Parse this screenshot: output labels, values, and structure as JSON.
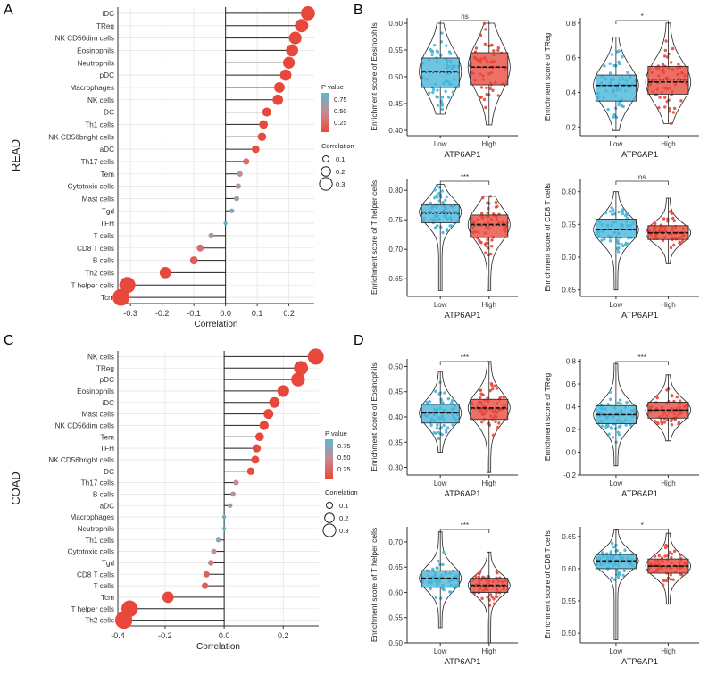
{
  "chart_data": [
    {
      "type": "lollipop",
      "panel": "A",
      "ylabel": "READ",
      "xlabel": "Correlation",
      "xlim": [
        -0.34,
        0.28
      ],
      "xticks": [
        -0.3,
        -0.2,
        -0.1,
        0.0,
        0.1,
        0.2
      ],
      "xtick_labels": [
        "-0.3",
        "-0.2",
        "-0.1",
        "0.0",
        "0.1",
        "0.2"
      ],
      "categories": [
        "iDC",
        "TReg",
        "NK CD56dim cells",
        "Eosinophils",
        "Neutrophils",
        "pDC",
        "Macrophages",
        "NK cells",
        "DC",
        "Th1 cells",
        "NK CD56bright cells",
        "aDC",
        "Th17 cells",
        "Tem",
        "Cytotoxic cells",
        "Mast cells",
        "Tgd",
        "TFH",
        "T cells",
        "CD8 T cells",
        "B cells",
        "Th2 cells",
        "T helper cells",
        "Tcm"
      ],
      "correlation": [
        0.26,
        0.24,
        0.22,
        0.21,
        0.2,
        0.19,
        0.17,
        0.165,
        0.13,
        0.12,
        0.115,
        0.095,
        0.065,
        0.045,
        0.04,
        0.035,
        0.02,
        0.0,
        -0.045,
        -0.08,
        -0.1,
        -0.19,
        -0.31,
        -0.33
      ],
      "p_value": [
        0.0,
        0.0,
        0.0,
        0.0,
        0.0,
        0.0,
        0.0,
        0.0,
        0.0,
        0.01,
        0.02,
        0.05,
        0.3,
        0.55,
        0.6,
        0.65,
        0.8,
        0.99,
        0.6,
        0.3,
        0.15,
        0.0,
        0.0,
        0.0
      ],
      "legend": {
        "p_title": "P value",
        "p_ticks": [
          "0.75",
          "0.50",
          "0.25"
        ],
        "size_title": "Correlation",
        "size_ticks": [
          "0.1",
          "0.2",
          "0.3"
        ]
      }
    },
    {
      "type": "lollipop",
      "panel": "C",
      "ylabel": "COAD",
      "xlabel": "Correlation",
      "xlim": [
        -0.36,
        0.32
      ],
      "xticks": [
        -0.4,
        -0.2,
        0.0,
        0.2
      ],
      "xtick_labels": [
        "-0.4",
        "-0.2",
        "0.0",
        "0.2"
      ],
      "categories": [
        "NK cells",
        "TReg",
        "pDC",
        "Eosinophils",
        "iDC",
        "Mast cells",
        "NK CD56dim cells",
        "Tem",
        "TFH",
        "NK CD56bright cells",
        "DC",
        "Th17 cells",
        "B cells",
        "aDC",
        "Macrophages",
        "Neutrophils",
        "Th1 cells",
        "Cytotoxic cells",
        "Tgd",
        "CD8 T cells",
        "T cells",
        "Tcm",
        "T helper cells",
        "Th2 cells"
      ],
      "correlation": [
        0.31,
        0.26,
        0.25,
        0.2,
        0.17,
        0.15,
        0.135,
        0.12,
        0.11,
        0.105,
        0.09,
        0.04,
        0.03,
        0.02,
        0.0,
        0.0,
        -0.02,
        -0.035,
        -0.045,
        -0.06,
        -0.065,
        -0.19,
        -0.32,
        -0.34
      ],
      "p_value": [
        0.0,
        0.0,
        0.0,
        0.0,
        0.0,
        0.0,
        0.0,
        0.0,
        0.01,
        0.01,
        0.02,
        0.5,
        0.6,
        0.7,
        0.99,
        0.99,
        0.75,
        0.55,
        0.4,
        0.2,
        0.15,
        0.0,
        0.0,
        0.0
      ],
      "legend": {
        "p_title": "P value",
        "p_ticks": [
          "0.75",
          "0.50",
          "0.25"
        ],
        "size_title": "Correlation",
        "size_ticks": [
          "0.1",
          "0.2",
          "0.3"
        ]
      }
    },
    {
      "type": "violin_box",
      "panel": "B1",
      "ylabel": "Enrichment score of Eosinophils",
      "xlabel": "ATP6AP1",
      "categories": [
        "Low",
        "High"
      ],
      "ylim": [
        0.39,
        0.61
      ],
      "yticks": [
        0.4,
        0.45,
        0.5,
        0.55,
        0.6
      ],
      "ytick_labels": [
        "0.40",
        "0.45",
        "0.50",
        "0.55",
        "0.60"
      ],
      "significance": "ns",
      "groups": [
        {
          "name": "Low",
          "min": 0.43,
          "q1": 0.48,
          "median": 0.51,
          "mean": 0.508,
          "q3": 0.535,
          "max": 0.6
        },
        {
          "name": "High",
          "min": 0.41,
          "q1": 0.485,
          "median": 0.518,
          "mean": 0.517,
          "q3": 0.545,
          "max": 0.6
        }
      ]
    },
    {
      "type": "violin_box",
      "panel": "B2",
      "ylabel": "Enrichment score of TReg",
      "xlabel": "ATP6AP1",
      "categories": [
        "Low",
        "High"
      ],
      "ylim": [
        0.15,
        0.83
      ],
      "yticks": [
        0.2,
        0.4,
        0.6,
        0.8
      ],
      "ytick_labels": [
        "0.2",
        "0.4",
        "0.6",
        "0.8"
      ],
      "significance": "*",
      "groups": [
        {
          "name": "Low",
          "min": 0.18,
          "q1": 0.35,
          "median": 0.44,
          "mean": 0.44,
          "q3": 0.5,
          "max": 0.72
        },
        {
          "name": "High",
          "min": 0.22,
          "q1": 0.39,
          "median": 0.46,
          "mean": 0.47,
          "q3": 0.55,
          "max": 0.8
        }
      ]
    },
    {
      "type": "violin_box",
      "panel": "B3",
      "ylabel": "Enrichment score of T helper cells",
      "xlabel": "ATP6AP1",
      "categories": [
        "Low",
        "High"
      ],
      "ylim": [
        0.62,
        0.82
      ],
      "yticks": [
        0.65,
        0.7,
        0.75,
        0.8
      ],
      "ytick_labels": [
        "0.65",
        "0.70",
        "0.75",
        "0.80"
      ],
      "significance": "***",
      "groups": [
        {
          "name": "Low",
          "min": 0.63,
          "q1": 0.745,
          "median": 0.763,
          "mean": 0.76,
          "q3": 0.775,
          "max": 0.81
        },
        {
          "name": "High",
          "min": 0.63,
          "q1": 0.72,
          "median": 0.742,
          "mean": 0.74,
          "q3": 0.758,
          "max": 0.79
        }
      ]
    },
    {
      "type": "violin_box",
      "panel": "B4",
      "ylabel": "Enrichment score of CD8 T cells",
      "xlabel": "ATP6AP1",
      "categories": [
        "Low",
        "High"
      ],
      "ylim": [
        0.64,
        0.82
      ],
      "yticks": [
        0.65,
        0.7,
        0.75,
        0.8
      ],
      "ytick_labels": [
        "0.65",
        "0.70",
        "0.75",
        "0.80"
      ],
      "significance": "ns",
      "groups": [
        {
          "name": "Low",
          "min": 0.65,
          "q1": 0.73,
          "median": 0.742,
          "mean": 0.742,
          "q3": 0.758,
          "max": 0.8
        },
        {
          "name": "High",
          "min": 0.69,
          "q1": 0.727,
          "median": 0.737,
          "mean": 0.738,
          "q3": 0.748,
          "max": 0.79
        }
      ]
    },
    {
      "type": "violin_box",
      "panel": "D1",
      "ylabel": "Enrichment score of Eosinophils",
      "xlabel": "ATP6AP1",
      "categories": [
        "Low",
        "High"
      ],
      "ylim": [
        0.285,
        0.515
      ],
      "yticks": [
        0.3,
        0.35,
        0.4,
        0.45,
        0.5
      ],
      "ytick_labels": [
        "0.30",
        "0.35",
        "0.40",
        "0.45",
        "0.50"
      ],
      "significance": "***",
      "groups": [
        {
          "name": "Low",
          "min": 0.33,
          "q1": 0.388,
          "median": 0.408,
          "mean": 0.408,
          "q3": 0.425,
          "max": 0.49
        },
        {
          "name": "High",
          "min": 0.29,
          "q1": 0.395,
          "median": 0.418,
          "mean": 0.416,
          "q3": 0.435,
          "max": 0.51
        }
      ]
    },
    {
      "type": "violin_box",
      "panel": "D2",
      "ylabel": "Enrichment score of TReg",
      "xlabel": "ATP6AP1",
      "categories": [
        "Low",
        "High"
      ],
      "ylim": [
        -0.2,
        0.82
      ],
      "yticks": [
        -0.2,
        0.0,
        0.2,
        0.4,
        0.6,
        0.8
      ],
      "ytick_labels": [
        "-0.2",
        "0.0",
        "0.2",
        "0.4",
        "0.6",
        "0.8"
      ],
      "significance": "***",
      "groups": [
        {
          "name": "Low",
          "min": -0.12,
          "q1": 0.25,
          "median": 0.33,
          "mean": 0.33,
          "q3": 0.41,
          "max": 0.78
        },
        {
          "name": "High",
          "min": 0.1,
          "q1": 0.3,
          "median": 0.37,
          "mean": 0.37,
          "q3": 0.44,
          "max": 0.68
        }
      ]
    },
    {
      "type": "violin_box",
      "panel": "D3",
      "ylabel": "Enrichment score of T helper cells",
      "xlabel": "ATP6AP1",
      "categories": [
        "Low",
        "High"
      ],
      "ylim": [
        0.5,
        0.73
      ],
      "yticks": [
        0.5,
        0.55,
        0.6,
        0.65,
        0.7
      ],
      "ytick_labels": [
        "0.50",
        "0.55",
        "0.60",
        "0.65",
        "0.70"
      ],
      "significance": "***",
      "groups": [
        {
          "name": "Low",
          "min": 0.53,
          "q1": 0.61,
          "median": 0.628,
          "mean": 0.627,
          "q3": 0.643,
          "max": 0.72
        },
        {
          "name": "High",
          "min": 0.5,
          "q1": 0.6,
          "median": 0.614,
          "mean": 0.612,
          "q3": 0.628,
          "max": 0.68
        }
      ]
    },
    {
      "type": "violin_box",
      "panel": "D4",
      "ylabel": "Enrichment score of CD8 T cells",
      "xlabel": "ATP6AP1",
      "categories": [
        "Low",
        "High"
      ],
      "ylim": [
        0.485,
        0.665
      ],
      "yticks": [
        0.5,
        0.55,
        0.6,
        0.65
      ],
      "ytick_labels": [
        "0.50",
        "0.55",
        "0.60",
        "0.65"
      ],
      "significance": "*",
      "groups": [
        {
          "name": "Low",
          "min": 0.49,
          "q1": 0.6,
          "median": 0.612,
          "mean": 0.61,
          "q3": 0.622,
          "max": 0.66
        },
        {
          "name": "High",
          "min": 0.545,
          "q1": 0.593,
          "median": 0.604,
          "mean": 0.604,
          "q3": 0.615,
          "max": 0.655
        }
      ]
    }
  ],
  "panel_labels": {
    "a": "A",
    "b": "B",
    "c": "C",
    "d": "D"
  },
  "colors": {
    "low": "#46b5d9",
    "high": "#e8483b",
    "p_low": "#e8483b",
    "p_mid": "#c88a95",
    "p_high": "#5bb8cf",
    "grid": "#e6e6e6",
    "axis": "#333333"
  }
}
